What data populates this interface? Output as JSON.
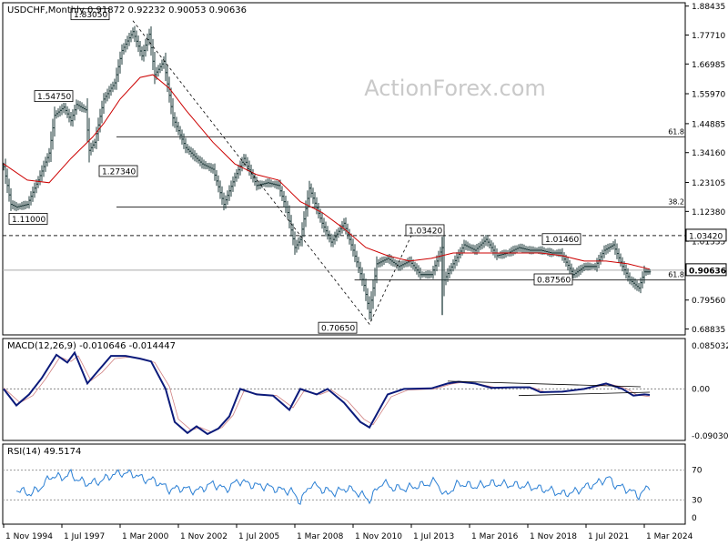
{
  "chart_data": {
    "symbol_line": "USDCHF,Monthly  0.91872 0.92232 0.90053 0.90636",
    "watermark": "ActionForex.com",
    "x_ticks": [
      "1 Nov 1994",
      "1 Jul 1997",
      "1 Mar 2000",
      "1 Nov 2002",
      "1 Jul 2005",
      "1 Mar 2008",
      "1 Nov 2010",
      "1 Jul 2013",
      "1 Mar 2016",
      "1 Nov 2018",
      "1 Jul 2021",
      "1 Mar 2024"
    ],
    "price_panel": {
      "type": "bar",
      "ylim": [
        0.67,
        1.89
      ],
      "y_ticks": [
        "1.88435",
        "1.77710",
        "1.66985",
        "1.55970",
        "1.44885",
        "1.34160",
        "1.23105",
        "1.12380",
        "1.01335",
        "0.90636",
        "0.79560",
        "0.68835"
      ],
      "current_price": 0.90636,
      "current_price_label": "0.90636",
      "resistance_label": "1.03420",
      "resistance": 1.0342,
      "annotations": [
        {
          "label": "1.83050",
          "date": "2000-10"
        },
        {
          "label": "1.54750",
          "date": "1998-09"
        },
        {
          "label": "1.27340",
          "date": "1999-01"
        },
        {
          "label": "1.11000",
          "date": "1995-04"
        },
        {
          "label": "0.70650",
          "date": "2011-08"
        },
        {
          "label": "1.03420",
          "date": "2013-07"
        },
        {
          "label": "1.01460",
          "date": "2021-07"
        },
        {
          "label": "0.87560",
          "date": "2021-01"
        }
      ],
      "fib_levels": [
        {
          "label": "61.8",
          "value": 1.4
        },
        {
          "label": "38.2",
          "value": 1.14
        },
        {
          "label": "61.8",
          "value": 0.87
        }
      ],
      "close_series": [
        [
          "1994-11",
          1.29
        ],
        [
          "1995-03",
          1.15
        ],
        [
          "1995-06",
          1.14
        ],
        [
          "1995-12",
          1.15
        ],
        [
          "1996-06",
          1.24
        ],
        [
          "1996-12",
          1.34
        ],
        [
          "1997-03",
          1.48
        ],
        [
          "1997-08",
          1.51
        ],
        [
          "1997-12",
          1.46
        ],
        [
          "1998-03",
          1.52
        ],
        [
          "1998-08",
          1.5
        ],
        [
          "1998-10",
          1.35
        ],
        [
          "1999-01",
          1.38
        ],
        [
          "1999-06",
          1.54
        ],
        [
          "1999-12",
          1.6
        ],
        [
          "2000-04",
          1.72
        ],
        [
          "2000-10",
          1.79
        ],
        [
          "2001-03",
          1.7
        ],
        [
          "2001-07",
          1.78
        ],
        [
          "2001-10",
          1.63
        ],
        [
          "2002-03",
          1.68
        ],
        [
          "2002-08",
          1.47
        ],
        [
          "2003-03",
          1.36
        ],
        [
          "2003-12",
          1.3
        ],
        [
          "2004-06",
          1.28
        ],
        [
          "2004-12",
          1.15
        ],
        [
          "2005-06",
          1.25
        ],
        [
          "2005-11",
          1.32
        ],
        [
          "2006-06",
          1.22
        ],
        [
          "2006-12",
          1.23
        ],
        [
          "2007-06",
          1.22
        ],
        [
          "2007-11",
          1.12
        ],
        [
          "2008-03",
          0.99
        ],
        [
          "2008-06",
          1.02
        ],
        [
          "2008-11",
          1.21
        ],
        [
          "2009-06",
          1.08
        ],
        [
          "2009-11",
          1.01
        ],
        [
          "2010-06",
          1.08
        ],
        [
          "2010-11",
          0.98
        ],
        [
          "2011-05",
          0.85
        ],
        [
          "2011-08",
          0.75
        ],
        [
          "2011-12",
          0.93
        ],
        [
          "2012-06",
          0.95
        ],
        [
          "2012-12",
          0.92
        ],
        [
          "2013-06",
          0.94
        ],
        [
          "2013-12",
          0.89
        ],
        [
          "2014-06",
          0.89
        ],
        [
          "2014-12",
          0.99
        ],
        [
          "2015-01",
          0.87
        ],
        [
          "2015-06",
          0.93
        ],
        [
          "2015-12",
          1.0
        ],
        [
          "2016-06",
          0.98
        ],
        [
          "2016-12",
          1.02
        ],
        [
          "2017-06",
          0.96
        ],
        [
          "2017-12",
          0.97
        ],
        [
          "2018-06",
          0.99
        ],
        [
          "2018-12",
          0.98
        ],
        [
          "2019-06",
          0.98
        ],
        [
          "2019-12",
          0.97
        ],
        [
          "2020-05",
          0.97
        ],
        [
          "2020-12",
          0.89
        ],
        [
          "2021-06",
          0.92
        ],
        [
          "2021-12",
          0.92
        ],
        [
          "2022-05",
          0.98
        ],
        [
          "2022-10",
          1.0
        ],
        [
          "2023-03",
          0.92
        ],
        [
          "2023-07",
          0.87
        ],
        [
          "2023-12",
          0.84
        ],
        [
          "2024-03",
          0.9
        ],
        [
          "2024-06",
          0.9
        ]
      ],
      "ma_series": [
        [
          "1994-11",
          1.3
        ],
        [
          "1995-12",
          1.24
        ],
        [
          "1996-12",
          1.23
        ],
        [
          "1997-12",
          1.32
        ],
        [
          "1998-12",
          1.4
        ],
        [
          "1999-06",
          1.45
        ],
        [
          "2000-03",
          1.54
        ],
        [
          "2001-02",
          1.62
        ],
        [
          "2001-09",
          1.63
        ],
        [
          "2002-06",
          1.58
        ],
        [
          "2003-03",
          1.5
        ],
        [
          "2004-06",
          1.38
        ],
        [
          "2005-06",
          1.3
        ],
        [
          "2006-06",
          1.26
        ],
        [
          "2007-06",
          1.24
        ],
        [
          "2008-06",
          1.16
        ],
        [
          "2009-06",
          1.12
        ],
        [
          "2010-06",
          1.06
        ],
        [
          "2011-06",
          0.99
        ],
        [
          "2012-06",
          0.96
        ],
        [
          "2013-06",
          0.94
        ],
        [
          "2014-06",
          0.95
        ],
        [
          "2015-06",
          0.97
        ],
        [
          "2016-06",
          0.97
        ],
        [
          "2017-06",
          0.97
        ],
        [
          "2018-06",
          0.97
        ],
        [
          "2019-06",
          0.97
        ],
        [
          "2020-06",
          0.96
        ],
        [
          "2021-06",
          0.94
        ],
        [
          "2022-06",
          0.94
        ],
        [
          "2023-06",
          0.93
        ],
        [
          "2024-06",
          0.91
        ]
      ],
      "dashed_series": [
        [
          "2000-10",
          1.83
        ],
        [
          "2011-08",
          0.7065
        ],
        [
          "2013-07",
          1.0342
        ]
      ]
    },
    "macd_panel": {
      "title": "MACD(12,26,9) -0.010646 -0.014447",
      "y_ticks": [
        "0.085032",
        "0.00",
        "-0.090302"
      ],
      "ylim": [
        -0.0903,
        0.085
      ],
      "macd_series": [
        [
          "1994-11",
          0.0
        ],
        [
          "1995-06",
          -0.03
        ],
        [
          "1996-01",
          -0.01
        ],
        [
          "1996-08",
          0.02
        ],
        [
          "1997-04",
          0.062
        ],
        [
          "1997-10",
          0.048
        ],
        [
          "1998-02",
          0.066
        ],
        [
          "1998-09",
          0.01
        ],
        [
          "1999-03",
          0.033
        ],
        [
          "1999-10",
          0.06
        ],
        [
          "2000-06",
          0.06
        ],
        [
          "2001-02",
          0.055
        ],
        [
          "2001-08",
          0.05
        ],
        [
          "2002-04",
          0.0
        ],
        [
          "2002-09",
          -0.06
        ],
        [
          "2003-04",
          -0.08
        ],
        [
          "2003-09",
          -0.068
        ],
        [
          "2004-03",
          -0.082
        ],
        [
          "2004-09",
          -0.072
        ],
        [
          "2005-03",
          -0.05
        ],
        [
          "2005-09",
          0.0
        ],
        [
          "2006-06",
          -0.01
        ],
        [
          "2007-03",
          -0.012
        ],
        [
          "2007-12",
          -0.038
        ],
        [
          "2008-06",
          0.0
        ],
        [
          "2009-03",
          -0.01
        ],
        [
          "2009-09",
          0.0
        ],
        [
          "2010-06",
          -0.025
        ],
        [
          "2011-03",
          -0.06
        ],
        [
          "2011-08",
          -0.07
        ],
        [
          "2012-06",
          -0.01
        ],
        [
          "2013-03",
          0.0
        ],
        [
          "2014-06",
          0.001
        ],
        [
          "2015-03",
          0.01
        ],
        [
          "2015-09",
          0.013
        ],
        [
          "2016-06",
          0.01
        ],
        [
          "2017-03",
          0.002
        ],
        [
          "2018-03",
          0.003
        ],
        [
          "2018-12",
          0.003
        ],
        [
          "2019-06",
          -0.006
        ],
        [
          "2020-06",
          -0.005
        ],
        [
          "2021-06",
          0.0
        ],
        [
          "2022-06",
          0.01
        ],
        [
          "2023-03",
          0.0
        ],
        [
          "2023-09",
          -0.012
        ],
        [
          "2024-03",
          -0.01
        ],
        [
          "2024-06",
          -0.011
        ]
      ],
      "signal_series": [
        [
          "1994-11",
          0.002
        ],
        [
          "1995-08",
          -0.025
        ],
        [
          "1996-03",
          -0.012
        ],
        [
          "1996-10",
          0.018
        ],
        [
          "1997-06",
          0.058
        ],
        [
          "1997-12",
          0.05
        ],
        [
          "1998-04",
          0.06
        ],
        [
          "1998-11",
          0.015
        ],
        [
          "1999-05",
          0.03
        ],
        [
          "1999-12",
          0.055
        ],
        [
          "2000-08",
          0.058
        ],
        [
          "2001-04",
          0.054
        ],
        [
          "2001-10",
          0.048
        ],
        [
          "2002-06",
          0.005
        ],
        [
          "2002-11",
          -0.055
        ],
        [
          "2003-06",
          -0.075
        ],
        [
          "2003-11",
          -0.07
        ],
        [
          "2004-05",
          -0.078
        ],
        [
          "2004-11",
          -0.07
        ],
        [
          "2005-05",
          -0.048
        ],
        [
          "2005-11",
          -0.004
        ],
        [
          "2006-08",
          -0.01
        ],
        [
          "2007-05",
          -0.012
        ],
        [
          "2008-02",
          -0.034
        ],
        [
          "2008-08",
          -0.004
        ],
        [
          "2009-05",
          -0.01
        ],
        [
          "2009-11",
          -0.002
        ],
        [
          "2010-08",
          -0.022
        ],
        [
          "2011-05",
          -0.055
        ],
        [
          "2011-10",
          -0.065
        ],
        [
          "2012-08",
          -0.014
        ],
        [
          "2013-05",
          -0.002
        ],
        [
          "2014-08",
          0.0
        ],
        [
          "2015-05",
          0.009
        ],
        [
          "2015-11",
          0.012
        ],
        [
          "2016-08",
          0.009
        ],
        [
          "2017-05",
          0.003
        ],
        [
          "2018-05",
          0.003
        ],
        [
          "2019-02",
          0.002
        ],
        [
          "2019-08",
          -0.005
        ],
        [
          "2020-08",
          -0.005
        ],
        [
          "2021-08",
          0.001
        ],
        [
          "2022-08",
          0.009
        ],
        [
          "2023-05",
          0.001
        ],
        [
          "2023-11",
          -0.011
        ],
        [
          "2024-06",
          -0.014
        ]
      ],
      "trendlines": [
        [
          [
            "2015-03",
            0.014
          ],
          [
            "2024-01",
            0.004
          ]
        ],
        [
          [
            "2018-06",
            -0.012
          ],
          [
            "2024-06",
            -0.006
          ]
        ]
      ]
    },
    "rsi_panel": {
      "title": "RSI(14) 49.5174",
      "ylim": [
        0,
        100
      ],
      "y_ticks": [
        70,
        30,
        0
      ],
      "y_tick_labels": [
        "70",
        "30",
        "0"
      ],
      "series": [
        [
          "1995-06",
          44
        ],
        [
          "1996-02",
          38
        ],
        [
          "1996-08",
          48
        ],
        [
          "1997-01",
          62
        ],
        [
          "1997-07",
          60
        ],
        [
          "1997-12",
          65
        ],
        [
          "1998-03",
          58
        ],
        [
          "1998-09",
          52
        ],
        [
          "1999-04",
          55
        ],
        [
          "1999-11",
          64
        ],
        [
          "2000-04",
          66
        ],
        [
          "2000-10",
          65
        ],
        [
          "2001-04",
          58
        ],
        [
          "2001-10",
          56
        ],
        [
          "2002-06",
          44
        ],
        [
          "2003-01",
          46
        ],
        [
          "2003-09",
          42
        ],
        [
          "2004-06",
          52
        ],
        [
          "2005-01",
          44
        ],
        [
          "2005-08",
          56
        ],
        [
          "2006-04",
          50
        ],
        [
          "2006-12",
          48
        ],
        [
          "2007-06",
          44
        ],
        [
          "2008-01",
          42
        ],
        [
          "2008-06",
          28
        ],
        [
          "2008-12",
          52
        ],
        [
          "2009-06",
          44
        ],
        [
          "2010-01",
          40
        ],
        [
          "2010-08",
          46
        ],
        [
          "2011-03",
          38
        ],
        [
          "2011-08",
          30
        ],
        [
          "2012-03",
          54
        ],
        [
          "2012-09",
          46
        ],
        [
          "2013-03",
          45
        ],
        [
          "2014-01",
          50
        ],
        [
          "2014-09",
          55
        ],
        [
          "2015-01",
          35
        ],
        [
          "2015-09",
          52
        ],
        [
          "2016-06",
          48
        ],
        [
          "2017-03",
          52
        ],
        [
          "2018-03",
          50
        ],
        [
          "2018-12",
          48
        ],
        [
          "2019-06",
          45
        ],
        [
          "2020-01",
          42
        ],
        [
          "2020-05",
          38
        ],
        [
          "2020-12",
          40
        ],
        [
          "2021-06",
          47
        ],
        [
          "2022-01",
          52
        ],
        [
          "2022-07",
          60
        ],
        [
          "2022-11",
          50
        ],
        [
          "2023-06",
          44
        ],
        [
          "2023-12",
          36
        ],
        [
          "2024-03",
          42
        ],
        [
          "2024-06",
          49.5
        ]
      ]
    }
  }
}
